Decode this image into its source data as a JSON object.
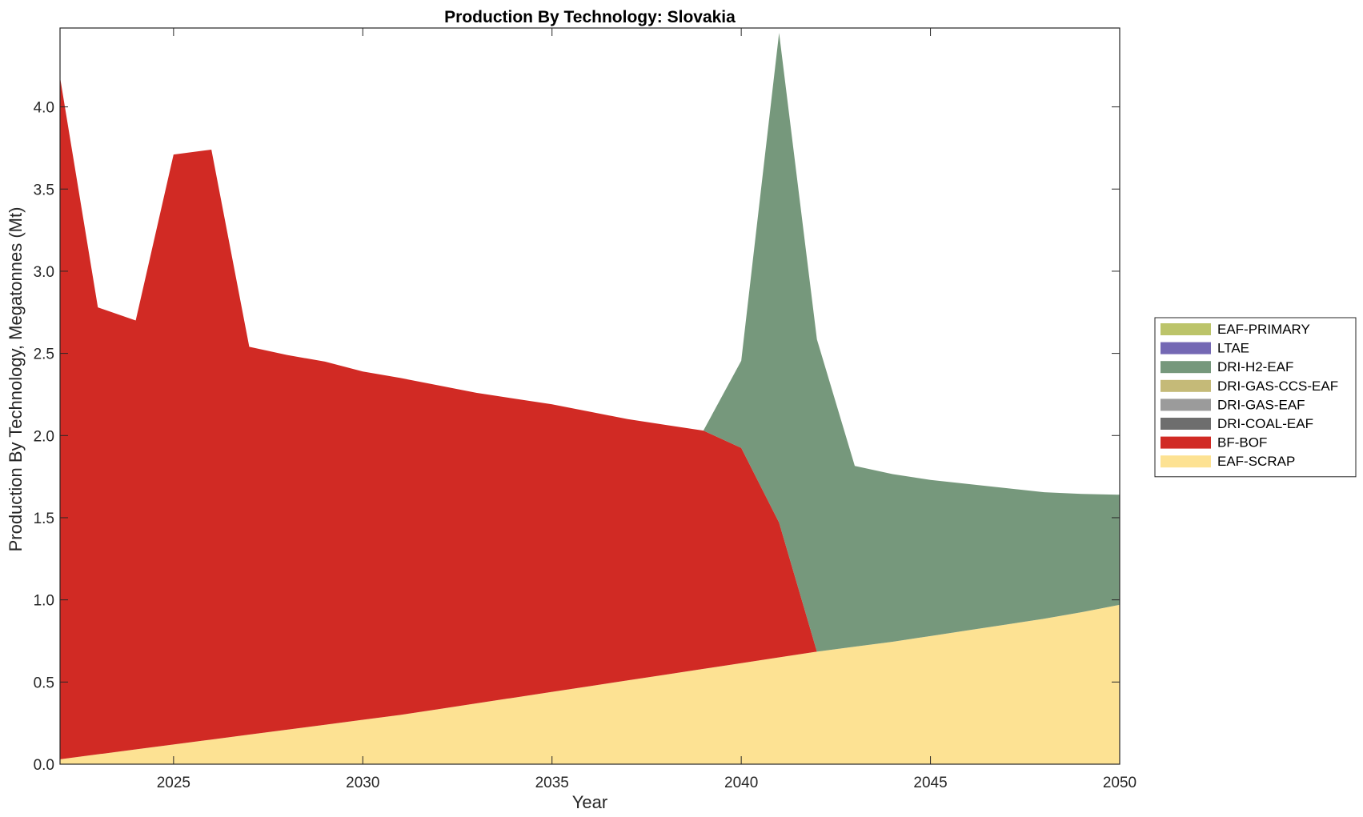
{
  "chart_data": {
    "type": "area",
    "title": "Production By Technology: Slovakia",
    "xlabel": "Year",
    "ylabel": "Production By Technology, Megatonnes (Mt)",
    "xlim": [
      2022,
      2050
    ],
    "ylim": [
      0,
      4.48
    ],
    "xticks": [
      2025,
      2030,
      2035,
      2040,
      2045,
      2050
    ],
    "yticks": [
      0.0,
      0.5,
      1.0,
      1.5,
      2.0,
      2.5,
      3.0,
      3.5,
      4.0
    ],
    "ytick_labels": [
      "0.0",
      "0.5",
      "1.0",
      "1.5",
      "2.0",
      "2.5",
      "3.0",
      "3.5",
      "4.0"
    ],
    "grid": false,
    "legend_position": "right-outside",
    "x": [
      2022,
      2023,
      2024,
      2025,
      2026,
      2027,
      2028,
      2029,
      2030,
      2031,
      2032,
      2033,
      2034,
      2035,
      2036,
      2037,
      2038,
      2039,
      2040,
      2041,
      2042,
      2043,
      2044,
      2045,
      2046,
      2047,
      2048,
      2049,
      2050
    ],
    "series": [
      {
        "name": "EAF-SCRAP",
        "color": "#FDE293",
        "values": [
          0.03,
          0.06,
          0.09,
          0.12,
          0.15,
          0.18,
          0.21,
          0.24,
          0.27,
          0.3,
          0.335,
          0.37,
          0.405,
          0.44,
          0.475,
          0.51,
          0.545,
          0.58,
          0.615,
          0.65,
          0.685,
          0.715,
          0.745,
          0.78,
          0.815,
          0.85,
          0.885,
          0.925,
          0.97
        ]
      },
      {
        "name": "BF-BOF",
        "color": "#D12A24",
        "values": [
          4.15,
          2.72,
          2.61,
          3.59,
          3.59,
          2.36,
          2.28,
          2.21,
          2.12,
          2.05,
          1.97,
          1.89,
          1.82,
          1.75,
          1.67,
          1.59,
          1.52,
          1.45,
          1.31,
          0.82,
          0,
          0,
          0,
          0,
          0,
          0,
          0,
          0,
          0
        ]
      },
      {
        "name": "DRI-COAL-EAF",
        "color": "#6E6E6E",
        "values": [
          0,
          0,
          0,
          0,
          0,
          0,
          0,
          0,
          0,
          0,
          0,
          0,
          0,
          0,
          0,
          0,
          0,
          0,
          0,
          0,
          0,
          0,
          0,
          0,
          0,
          0,
          0,
          0,
          0
        ]
      },
      {
        "name": "DRI-GAS-EAF",
        "color": "#9B9B9B",
        "values": [
          0,
          0,
          0,
          0,
          0,
          0,
          0,
          0,
          0,
          0,
          0,
          0,
          0,
          0,
          0,
          0,
          0,
          0,
          0,
          0,
          0,
          0,
          0,
          0,
          0,
          0,
          0,
          0,
          0
        ]
      },
      {
        "name": "DRI-GAS-CCS-EAF",
        "color": "#C5BA78",
        "values": [
          0,
          0,
          0,
          0,
          0,
          0,
          0,
          0,
          0,
          0,
          0,
          0,
          0,
          0,
          0,
          0,
          0,
          0,
          0,
          0,
          0,
          0,
          0,
          0,
          0,
          0,
          0,
          0,
          0
        ]
      },
      {
        "name": "DRI-H2-EAF",
        "color": "#76987C",
        "values": [
          0,
          0,
          0,
          0,
          0,
          0,
          0,
          0,
          0,
          0,
          0,
          0,
          0,
          0,
          0,
          0,
          0,
          0,
          0.53,
          2.98,
          1.9,
          1.1,
          1.02,
          0.95,
          0.89,
          0.83,
          0.77,
          0.72,
          0.67
        ]
      },
      {
        "name": "LTAE",
        "color": "#7468B4",
        "values": [
          0,
          0,
          0,
          0,
          0,
          0,
          0,
          0,
          0,
          0,
          0,
          0,
          0,
          0,
          0,
          0,
          0,
          0,
          0,
          0,
          0,
          0,
          0,
          0,
          0,
          0,
          0,
          0,
          0
        ]
      },
      {
        "name": "EAF-PRIMARY",
        "color": "#BCC46A",
        "values": [
          0,
          0,
          0,
          0,
          0,
          0,
          0,
          0,
          0,
          0,
          0,
          0,
          0,
          0,
          0,
          0,
          0,
          0,
          0,
          0,
          0,
          0,
          0,
          0,
          0,
          0,
          0,
          0,
          0
        ]
      }
    ],
    "legend_order": [
      "EAF-PRIMARY",
      "LTAE",
      "DRI-H2-EAF",
      "DRI-GAS-CCS-EAF",
      "DRI-GAS-EAF",
      "DRI-COAL-EAF",
      "BF-BOF",
      "EAF-SCRAP"
    ]
  }
}
